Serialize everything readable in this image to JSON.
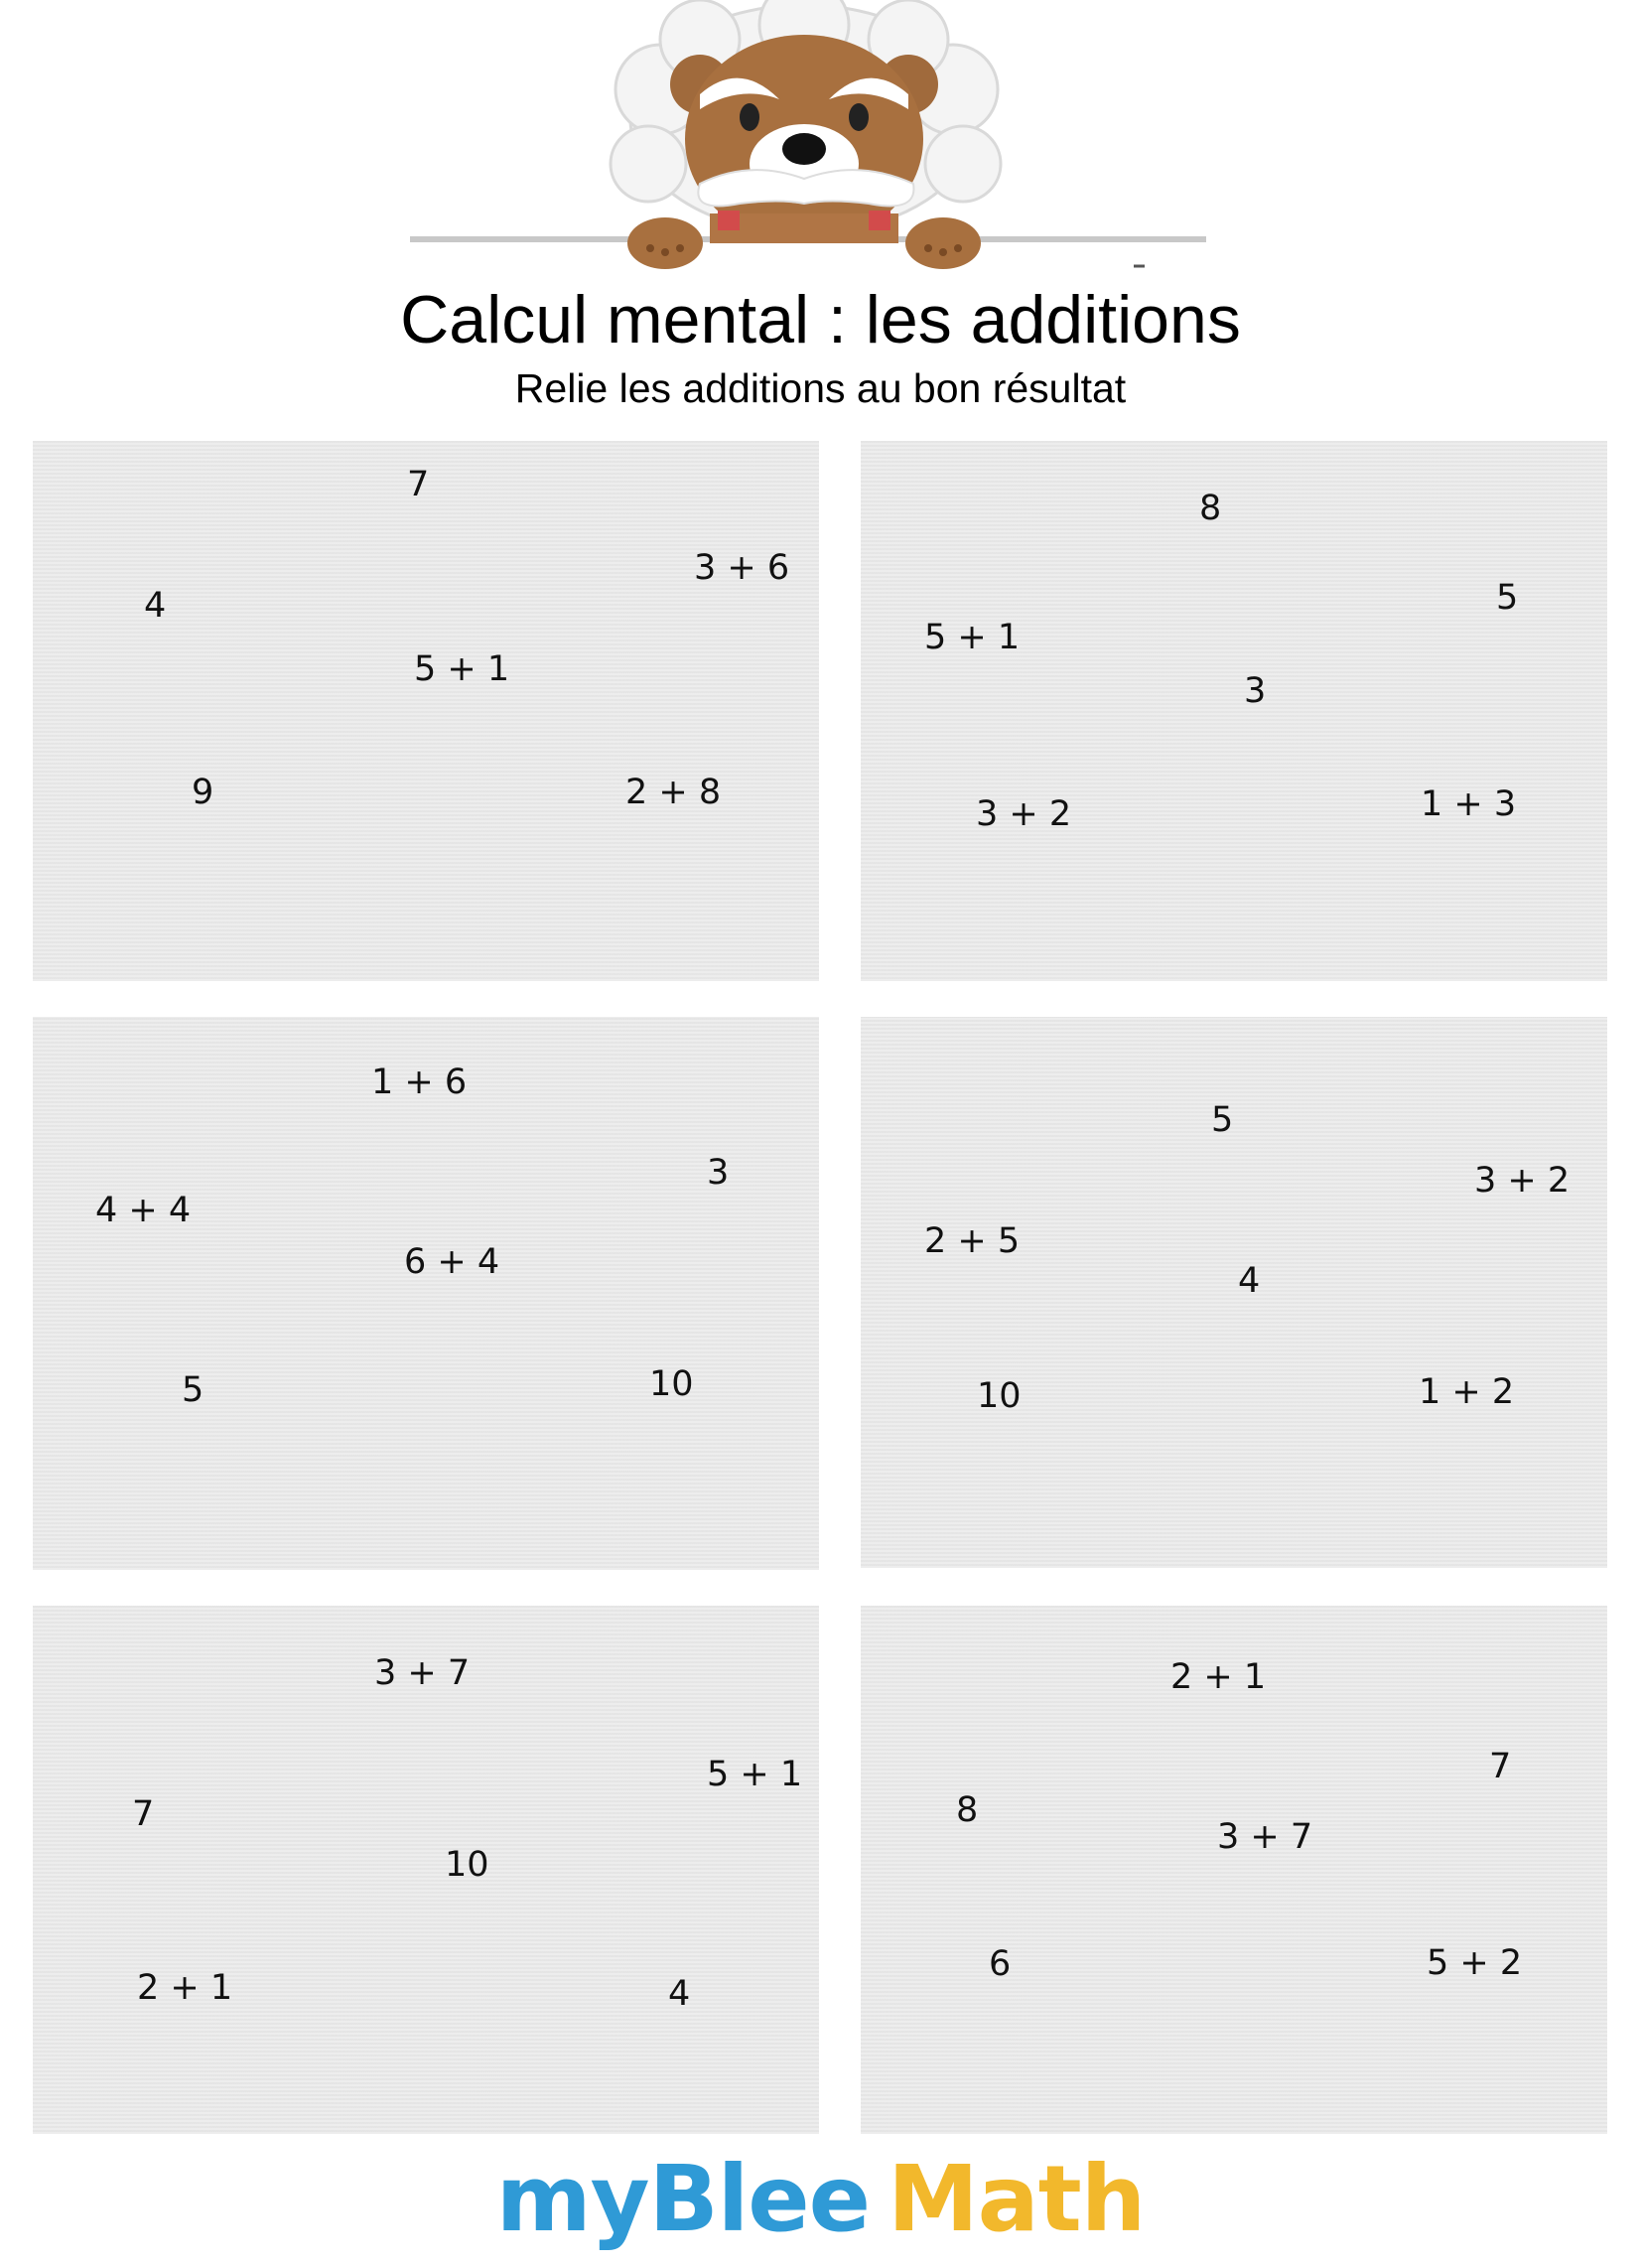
{
  "title": "Calcul mental : les additions",
  "subtitle": "Relie les additions au bon résultat",
  "brand": {
    "part1": "myBlee",
    "part2": "Math",
    "color1": "#2f9ad6",
    "color2": "#f2b82c"
  },
  "panels": [
    {
      "items": [
        "7",
        "3 + 6",
        "4",
        "5 + 1",
        "9",
        "2 + 8"
      ]
    },
    {
      "items": [
        "8",
        "5",
        "5 + 1",
        "3",
        "3 + 2",
        "1 + 3"
      ]
    },
    {
      "items": [
        "1 + 6",
        "3",
        "4 + 4",
        "6 + 4",
        "5",
        "10"
      ]
    },
    {
      "items": [
        "5",
        "3 + 2",
        "2 + 5",
        "4",
        "10",
        "1 + 2"
      ]
    },
    {
      "items": [
        "3 + 7",
        "5 + 1",
        "7",
        "10",
        "2 + 1",
        "4"
      ]
    },
    {
      "items": [
        "2 + 1",
        "7",
        "8",
        "3 + 7",
        "6",
        "5 + 2"
      ]
    }
  ]
}
